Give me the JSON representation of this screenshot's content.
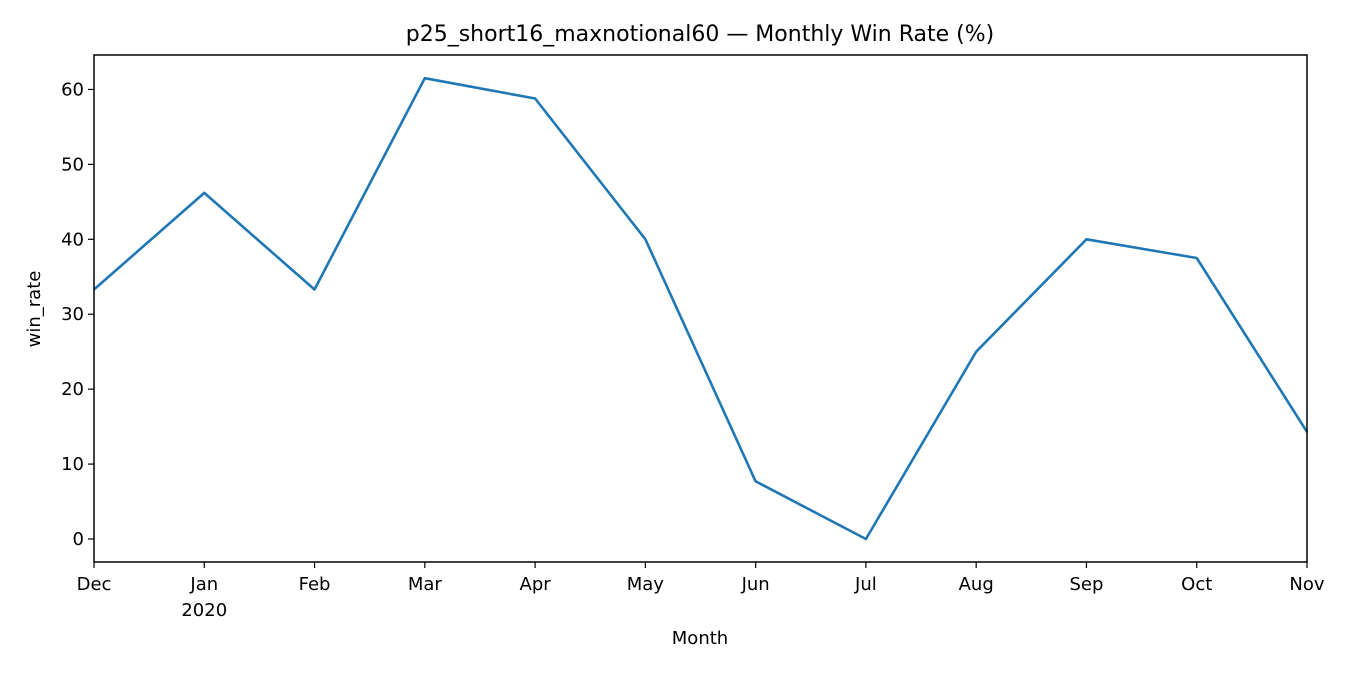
{
  "chart_data": {
    "type": "line",
    "title": "p25_short16_maxnotional60 — Monthly Win Rate (%)",
    "xlabel": "Month",
    "ylabel": "win_rate",
    "x": [
      "2019-12",
      "2020-01",
      "2020-02",
      "2020-03",
      "2020-04",
      "2020-05",
      "2020-06",
      "2020-07",
      "2020-08",
      "2020-09",
      "2020-10",
      "2020-11"
    ],
    "x_tick_labels": [
      "Dec",
      "Jan",
      "Feb",
      "Mar",
      "Apr",
      "May",
      "Jun",
      "Jul",
      "Aug",
      "Sep",
      "Oct",
      "Nov"
    ],
    "x_tick_sublabels": [
      "",
      "2020",
      "",
      "",
      "",
      "",
      "",
      "",
      "",
      "",
      "",
      ""
    ],
    "series": [
      {
        "values": [
          33.3,
          46.2,
          33.3,
          61.5,
          58.8,
          40.0,
          7.7,
          0.0,
          25.0,
          40.0,
          37.5,
          14.3
        ],
        "color": "#1f77b4"
      }
    ],
    "yticks": [
      0,
      10,
      20,
      30,
      40,
      50,
      60
    ],
    "ylim": [
      -3.07,
      64.6
    ],
    "grid": false
  }
}
